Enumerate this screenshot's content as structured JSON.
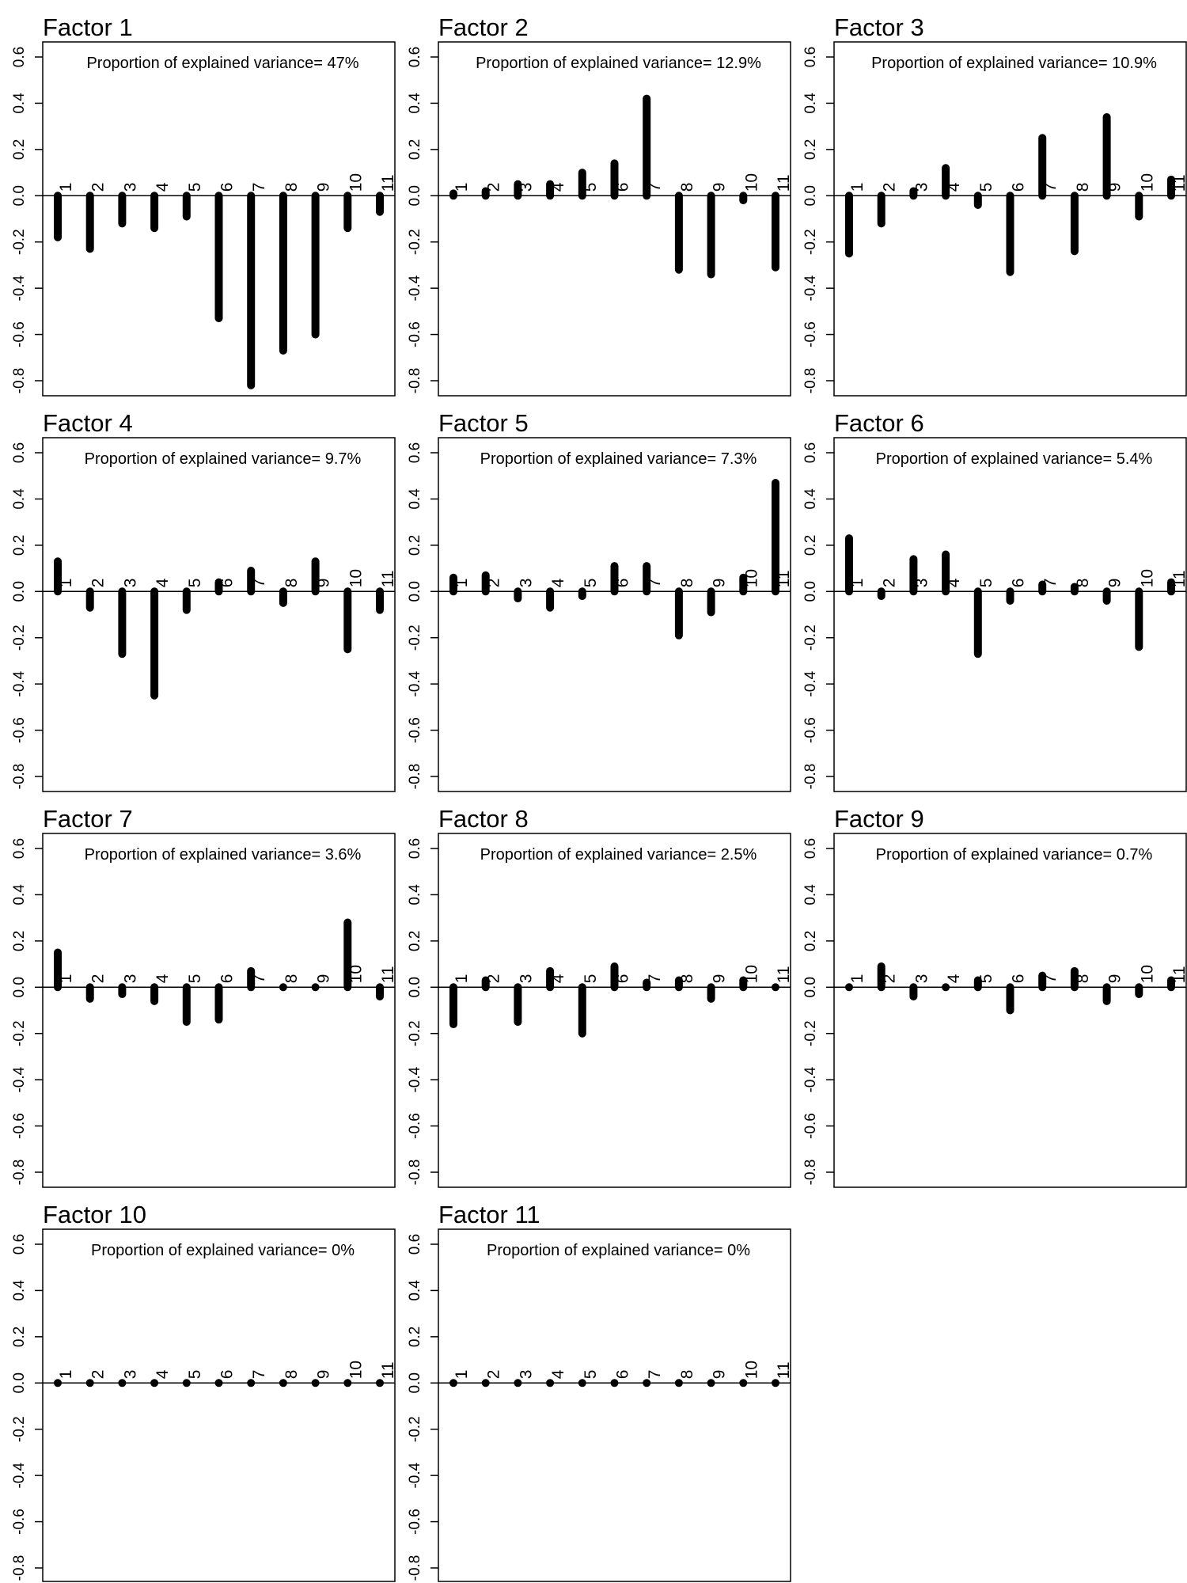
{
  "figure": {
    "variance_prefix": "Proportion of explained variance= ",
    "y_ticks": [
      "-0.8",
      "-0.6",
      "-0.4",
      "-0.2",
      "0.0",
      "0.2",
      "0.4",
      "0.6"
    ],
    "bar_labels": [
      "1",
      "2",
      "3",
      "4",
      "5",
      "6",
      "7",
      "8",
      "9",
      "10",
      "11"
    ]
  },
  "chart_data": [
    {
      "type": "bar",
      "title": "Factor 1",
      "variance": "47%",
      "ylim": [
        -0.8,
        0.6
      ],
      "categories": [
        "1",
        "2",
        "3",
        "4",
        "5",
        "6",
        "7",
        "8",
        "9",
        "10",
        "11"
      ],
      "values": [
        -0.18,
        -0.23,
        -0.12,
        -0.14,
        -0.09,
        -0.53,
        -0.82,
        -0.67,
        -0.6,
        -0.14,
        -0.07
      ]
    },
    {
      "type": "bar",
      "title": "Factor 2",
      "variance": "12.9%",
      "ylim": [
        -0.8,
        0.6
      ],
      "categories": [
        "1",
        "2",
        "3",
        "4",
        "5",
        "6",
        "7",
        "8",
        "9",
        "10",
        "11"
      ],
      "values": [
        0.01,
        0.02,
        0.05,
        0.05,
        0.1,
        0.14,
        0.42,
        -0.32,
        -0.34,
        -0.02,
        -0.31
      ]
    },
    {
      "type": "bar",
      "title": "Factor 3",
      "variance": "10.9%",
      "ylim": [
        -0.8,
        0.6
      ],
      "categories": [
        "1",
        "2",
        "3",
        "4",
        "5",
        "6",
        "7",
        "8",
        "9",
        "10",
        "11"
      ],
      "values": [
        -0.25,
        -0.12,
        0.02,
        0.12,
        -0.04,
        -0.33,
        0.25,
        -0.24,
        0.34,
        -0.09,
        0.07
      ]
    },
    {
      "type": "bar",
      "title": "Factor 4",
      "variance": "9.7%",
      "ylim": [
        -0.8,
        0.6
      ],
      "categories": [
        "1",
        "2",
        "3",
        "4",
        "5",
        "6",
        "7",
        "8",
        "9",
        "10",
        "11"
      ],
      "values": [
        0.13,
        -0.07,
        -0.27,
        -0.45,
        -0.08,
        0.04,
        0.09,
        -0.05,
        0.13,
        -0.25,
        -0.08
      ]
    },
    {
      "type": "bar",
      "title": "Factor 5",
      "variance": "7.3%",
      "ylim": [
        -0.8,
        0.6
      ],
      "categories": [
        "1",
        "2",
        "3",
        "4",
        "5",
        "6",
        "7",
        "8",
        "9",
        "10",
        "11"
      ],
      "values": [
        0.06,
        0.07,
        -0.03,
        -0.07,
        -0.02,
        0.11,
        0.11,
        -0.19,
        -0.09,
        0.06,
        0.47
      ]
    },
    {
      "type": "bar",
      "title": "Factor 6",
      "variance": "5.4%",
      "ylim": [
        -0.8,
        0.6
      ],
      "categories": [
        "1",
        "2",
        "3",
        "4",
        "5",
        "6",
        "7",
        "8",
        "9",
        "10",
        "11"
      ],
      "values": [
        0.23,
        -0.02,
        0.14,
        0.16,
        -0.27,
        -0.04,
        0.03,
        0.02,
        -0.04,
        -0.24,
        0.04
      ]
    },
    {
      "type": "bar",
      "title": "Factor 7",
      "variance": "3.6%",
      "ylim": [
        -0.8,
        0.6
      ],
      "categories": [
        "1",
        "2",
        "3",
        "4",
        "5",
        "6",
        "7",
        "8",
        "9",
        "10",
        "11"
      ],
      "values": [
        0.15,
        -0.05,
        -0.03,
        -0.06,
        -0.15,
        -0.14,
        0.07,
        0.0,
        0.0,
        0.28,
        -0.04
      ]
    },
    {
      "type": "bar",
      "title": "Factor 8",
      "variance": "2.5%",
      "ylim": [
        -0.8,
        0.6
      ],
      "categories": [
        "1",
        "2",
        "3",
        "4",
        "5",
        "6",
        "7",
        "8",
        "9",
        "10",
        "11"
      ],
      "values": [
        -0.16,
        0.03,
        -0.15,
        0.07,
        -0.2,
        0.09,
        0.02,
        0.03,
        -0.05,
        0.03,
        0.0
      ]
    },
    {
      "type": "bar",
      "title": "Factor 9",
      "variance": "0.7%",
      "ylim": [
        -0.8,
        0.6
      ],
      "categories": [
        "1",
        "2",
        "3",
        "4",
        "5",
        "6",
        "7",
        "8",
        "9",
        "10",
        "11"
      ],
      "values": [
        0.0,
        0.09,
        -0.04,
        0.0,
        0.03,
        -0.1,
        0.05,
        0.07,
        -0.06,
        -0.03,
        0.03
      ]
    },
    {
      "type": "bar",
      "title": "Factor 10",
      "variance": "0%",
      "ylim": [
        -0.8,
        0.6
      ],
      "categories": [
        "1",
        "2",
        "3",
        "4",
        "5",
        "6",
        "7",
        "8",
        "9",
        "10",
        "11"
      ],
      "values": [
        0,
        0,
        0,
        0,
        0,
        0,
        0,
        0,
        0,
        0,
        0
      ]
    },
    {
      "type": "bar",
      "title": "Factor 11",
      "variance": "0%",
      "ylim": [
        -0.8,
        0.6
      ],
      "categories": [
        "1",
        "2",
        "3",
        "4",
        "5",
        "6",
        "7",
        "8",
        "9",
        "10",
        "11"
      ],
      "values": [
        0,
        0,
        0,
        0,
        0,
        0,
        0,
        0,
        0,
        0,
        0
      ]
    }
  ]
}
